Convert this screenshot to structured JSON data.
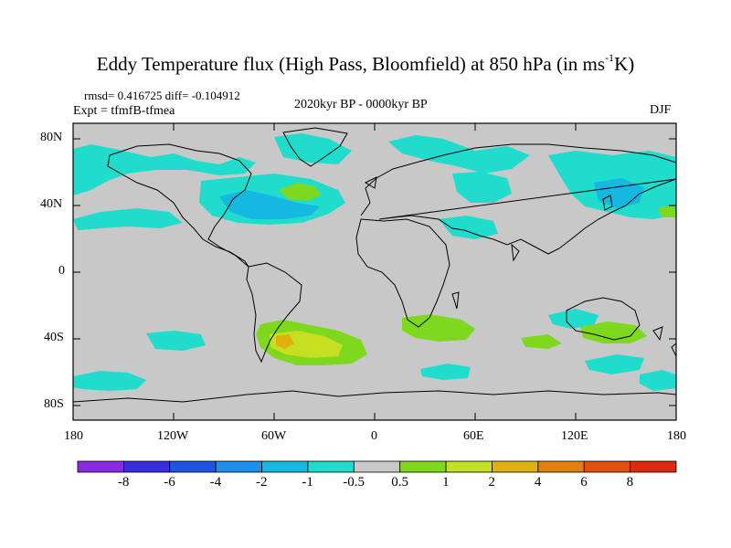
{
  "header": {
    "title_main": "Eddy Temperature flux (High Pass, Bloomfield) at 850 hPa (in ms",
    "title_sup": "-1",
    "title_end": "K)",
    "stats": "rmsd= 0.416725 diff= -0.104912",
    "experiment": "Expt = tfmfB-tfmea",
    "period": "2020kyr BP - 0000kyr BP",
    "season": "DJF"
  },
  "axes": {
    "lat_labels": [
      "80N",
      "40N",
      "0",
      "40S",
      "80S"
    ],
    "lon_labels": [
      "180",
      "120W",
      "60W",
      "0",
      "60E",
      "120E",
      "180"
    ]
  },
  "colorbar": {
    "labels": [
      "-8",
      "-6",
      "-4",
      "-2",
      "-1",
      "-0.5",
      "0.5",
      "1",
      "2",
      "4",
      "6",
      "8"
    ],
    "colors": [
      "#8a2be2",
      "#3a2fe0",
      "#1f55e0",
      "#1e90e8",
      "#15b8e0",
      "#20dccc",
      "#c8c8c8",
      "#7ed81e",
      "#c4e020",
      "#e0b010",
      "#e08010",
      "#e05010",
      "#e02a10"
    ]
  },
  "palette": {
    "land_background": "#c8c8c8",
    "neg_light": "#20dccc",
    "neg_mid": "#15b8e0",
    "pos_light": "#7ed81e",
    "pos_mid": "#c4e020",
    "pos_high": "#e0b010"
  }
}
